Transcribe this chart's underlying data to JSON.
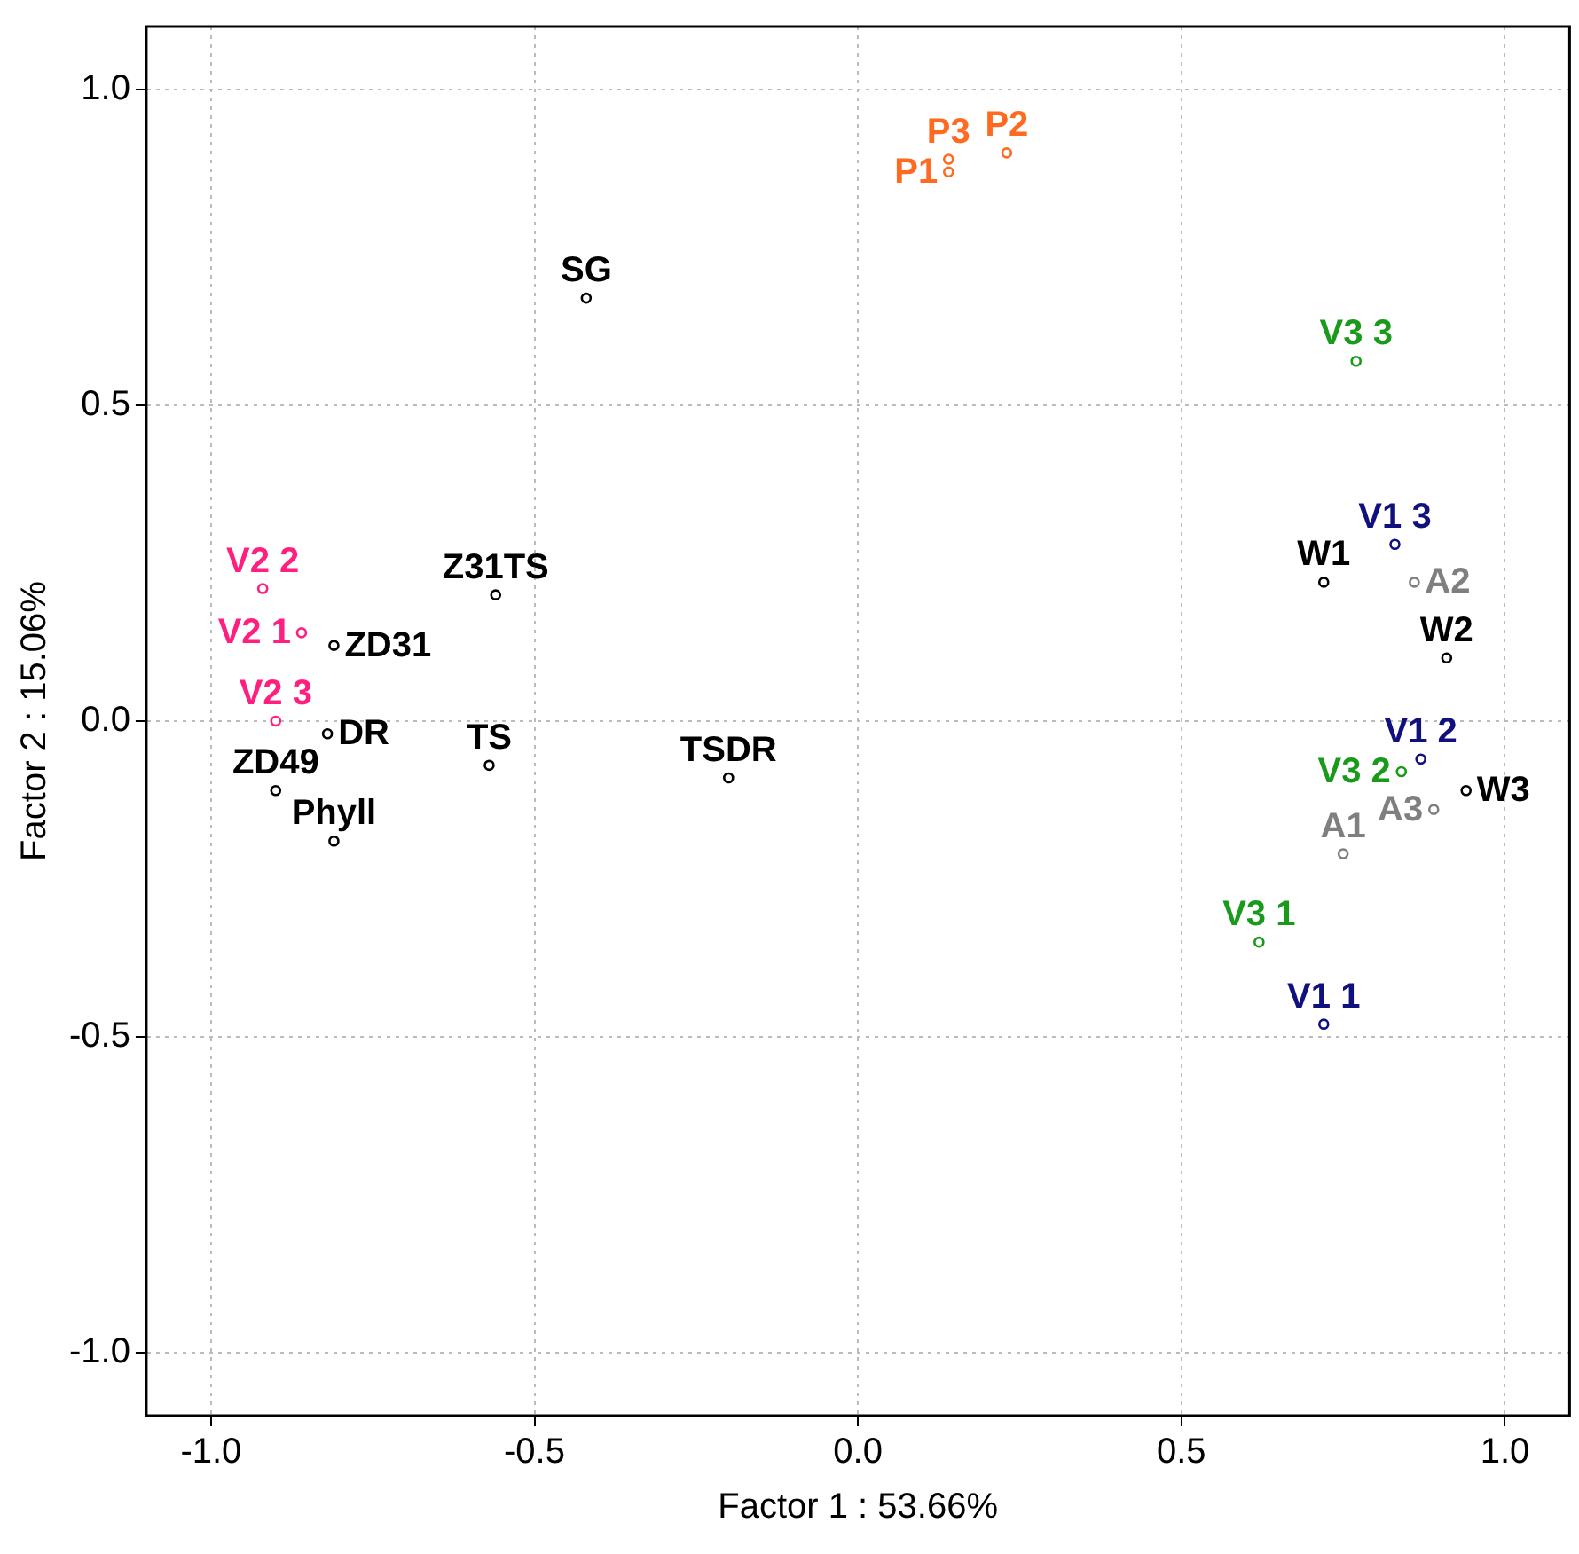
{
  "chart_data": {
    "type": "scatter",
    "xlabel": "Factor 1 : 53.66%",
    "ylabel": "Factor 2 : 15.06%",
    "xlim": [
      -1.1,
      1.1
    ],
    "ylim": [
      -1.1,
      1.1
    ],
    "xticks": [
      {
        "value": -1,
        "label": "-1.0"
      },
      {
        "value": -0.5,
        "label": "-0.5"
      },
      {
        "value": 0,
        "label": "0.0"
      },
      {
        "value": 0.5,
        "label": "0.5"
      },
      {
        "value": 1,
        "label": "1.0"
      }
    ],
    "yticks": [
      {
        "value": -1,
        "label": "-1.0"
      },
      {
        "value": -0.5,
        "label": "-0.5"
      },
      {
        "value": 0,
        "label": "0.0"
      },
      {
        "value": 0.5,
        "label": "0.5"
      },
      {
        "value": 1,
        "label": "1.0"
      }
    ],
    "grid": true,
    "legend": false,
    "marker": "circle",
    "series": [
      {
        "name": "V2 2",
        "color": "#ff1f7f",
        "x": [
          -0.92
        ],
        "values": [
          0.21
        ]
      },
      {
        "name": "V2 1",
        "color": "#ff1f7f",
        "x": [
          -0.86
        ],
        "values": [
          0.14
        ]
      },
      {
        "name": "ZD31",
        "color": "#000000",
        "x": [
          -0.81
        ],
        "values": [
          0.12
        ]
      },
      {
        "name": "Z31TS",
        "color": "#000000",
        "x": [
          -0.56
        ],
        "values": [
          0.2
        ]
      },
      {
        "name": "V2 3",
        "color": "#ff1f7f",
        "x": [
          -0.9
        ],
        "values": [
          0.0
        ]
      },
      {
        "name": "DR",
        "color": "#000000",
        "x": [
          -0.82
        ],
        "values": [
          -0.02
        ]
      },
      {
        "name": "TS",
        "color": "#000000",
        "x": [
          -0.57
        ],
        "values": [
          -0.07
        ]
      },
      {
        "name": "ZD49",
        "color": "#000000",
        "x": [
          -0.9
        ],
        "values": [
          -0.11
        ]
      },
      {
        "name": "Phyll",
        "color": "#000000",
        "x": [
          -0.81
        ],
        "values": [
          -0.19
        ]
      },
      {
        "name": "TSDR",
        "color": "#000000",
        "x": [
          -0.2
        ],
        "values": [
          -0.09
        ]
      },
      {
        "name": "SG",
        "color": "#000000",
        "x": [
          -0.42
        ],
        "values": [
          0.67
        ]
      },
      {
        "name": "P3",
        "color": "#ff6a21",
        "x": [
          0.14
        ],
        "values": [
          0.89
        ]
      },
      {
        "name": "P1",
        "color": "#ff6a21",
        "x": [
          0.14
        ],
        "values": [
          0.87
        ]
      },
      {
        "name": "P2",
        "color": "#ff6a21",
        "x": [
          0.23
        ],
        "values": [
          0.9
        ]
      },
      {
        "name": "V3 3",
        "color": "#1a9a1a",
        "x": [
          0.77
        ],
        "values": [
          0.57
        ]
      },
      {
        "name": "V1 3",
        "color": "#10107f",
        "x": [
          0.83
        ],
        "values": [
          0.28
        ]
      },
      {
        "name": "W1",
        "color": "#000000",
        "x": [
          0.72
        ],
        "values": [
          0.22
        ]
      },
      {
        "name": "A2",
        "color": "#7f7f7f",
        "x": [
          0.86
        ],
        "values": [
          0.22
        ]
      },
      {
        "name": "W2",
        "color": "#000000",
        "x": [
          0.91
        ],
        "values": [
          0.1
        ]
      },
      {
        "name": "V1 2",
        "color": "#10107f",
        "x": [
          0.87
        ],
        "values": [
          -0.06
        ]
      },
      {
        "name": "V3 2",
        "color": "#1a9a1a",
        "x": [
          0.84
        ],
        "values": [
          -0.08
        ]
      },
      {
        "name": "W3",
        "color": "#000000",
        "x": [
          0.94
        ],
        "values": [
          -0.11
        ]
      },
      {
        "name": "A3",
        "color": "#7f7f7f",
        "x": [
          0.89
        ],
        "values": [
          -0.14
        ]
      },
      {
        "name": "A1",
        "color": "#7f7f7f",
        "x": [
          0.75
        ],
        "values": [
          -0.21
        ]
      },
      {
        "name": "V3 1",
        "color": "#1a9a1a",
        "x": [
          0.62
        ],
        "values": [
          -0.35
        ]
      },
      {
        "name": "V1 1",
        "color": "#10107f",
        "x": [
          0.72
        ],
        "values": [
          -0.48
        ]
      }
    ]
  }
}
